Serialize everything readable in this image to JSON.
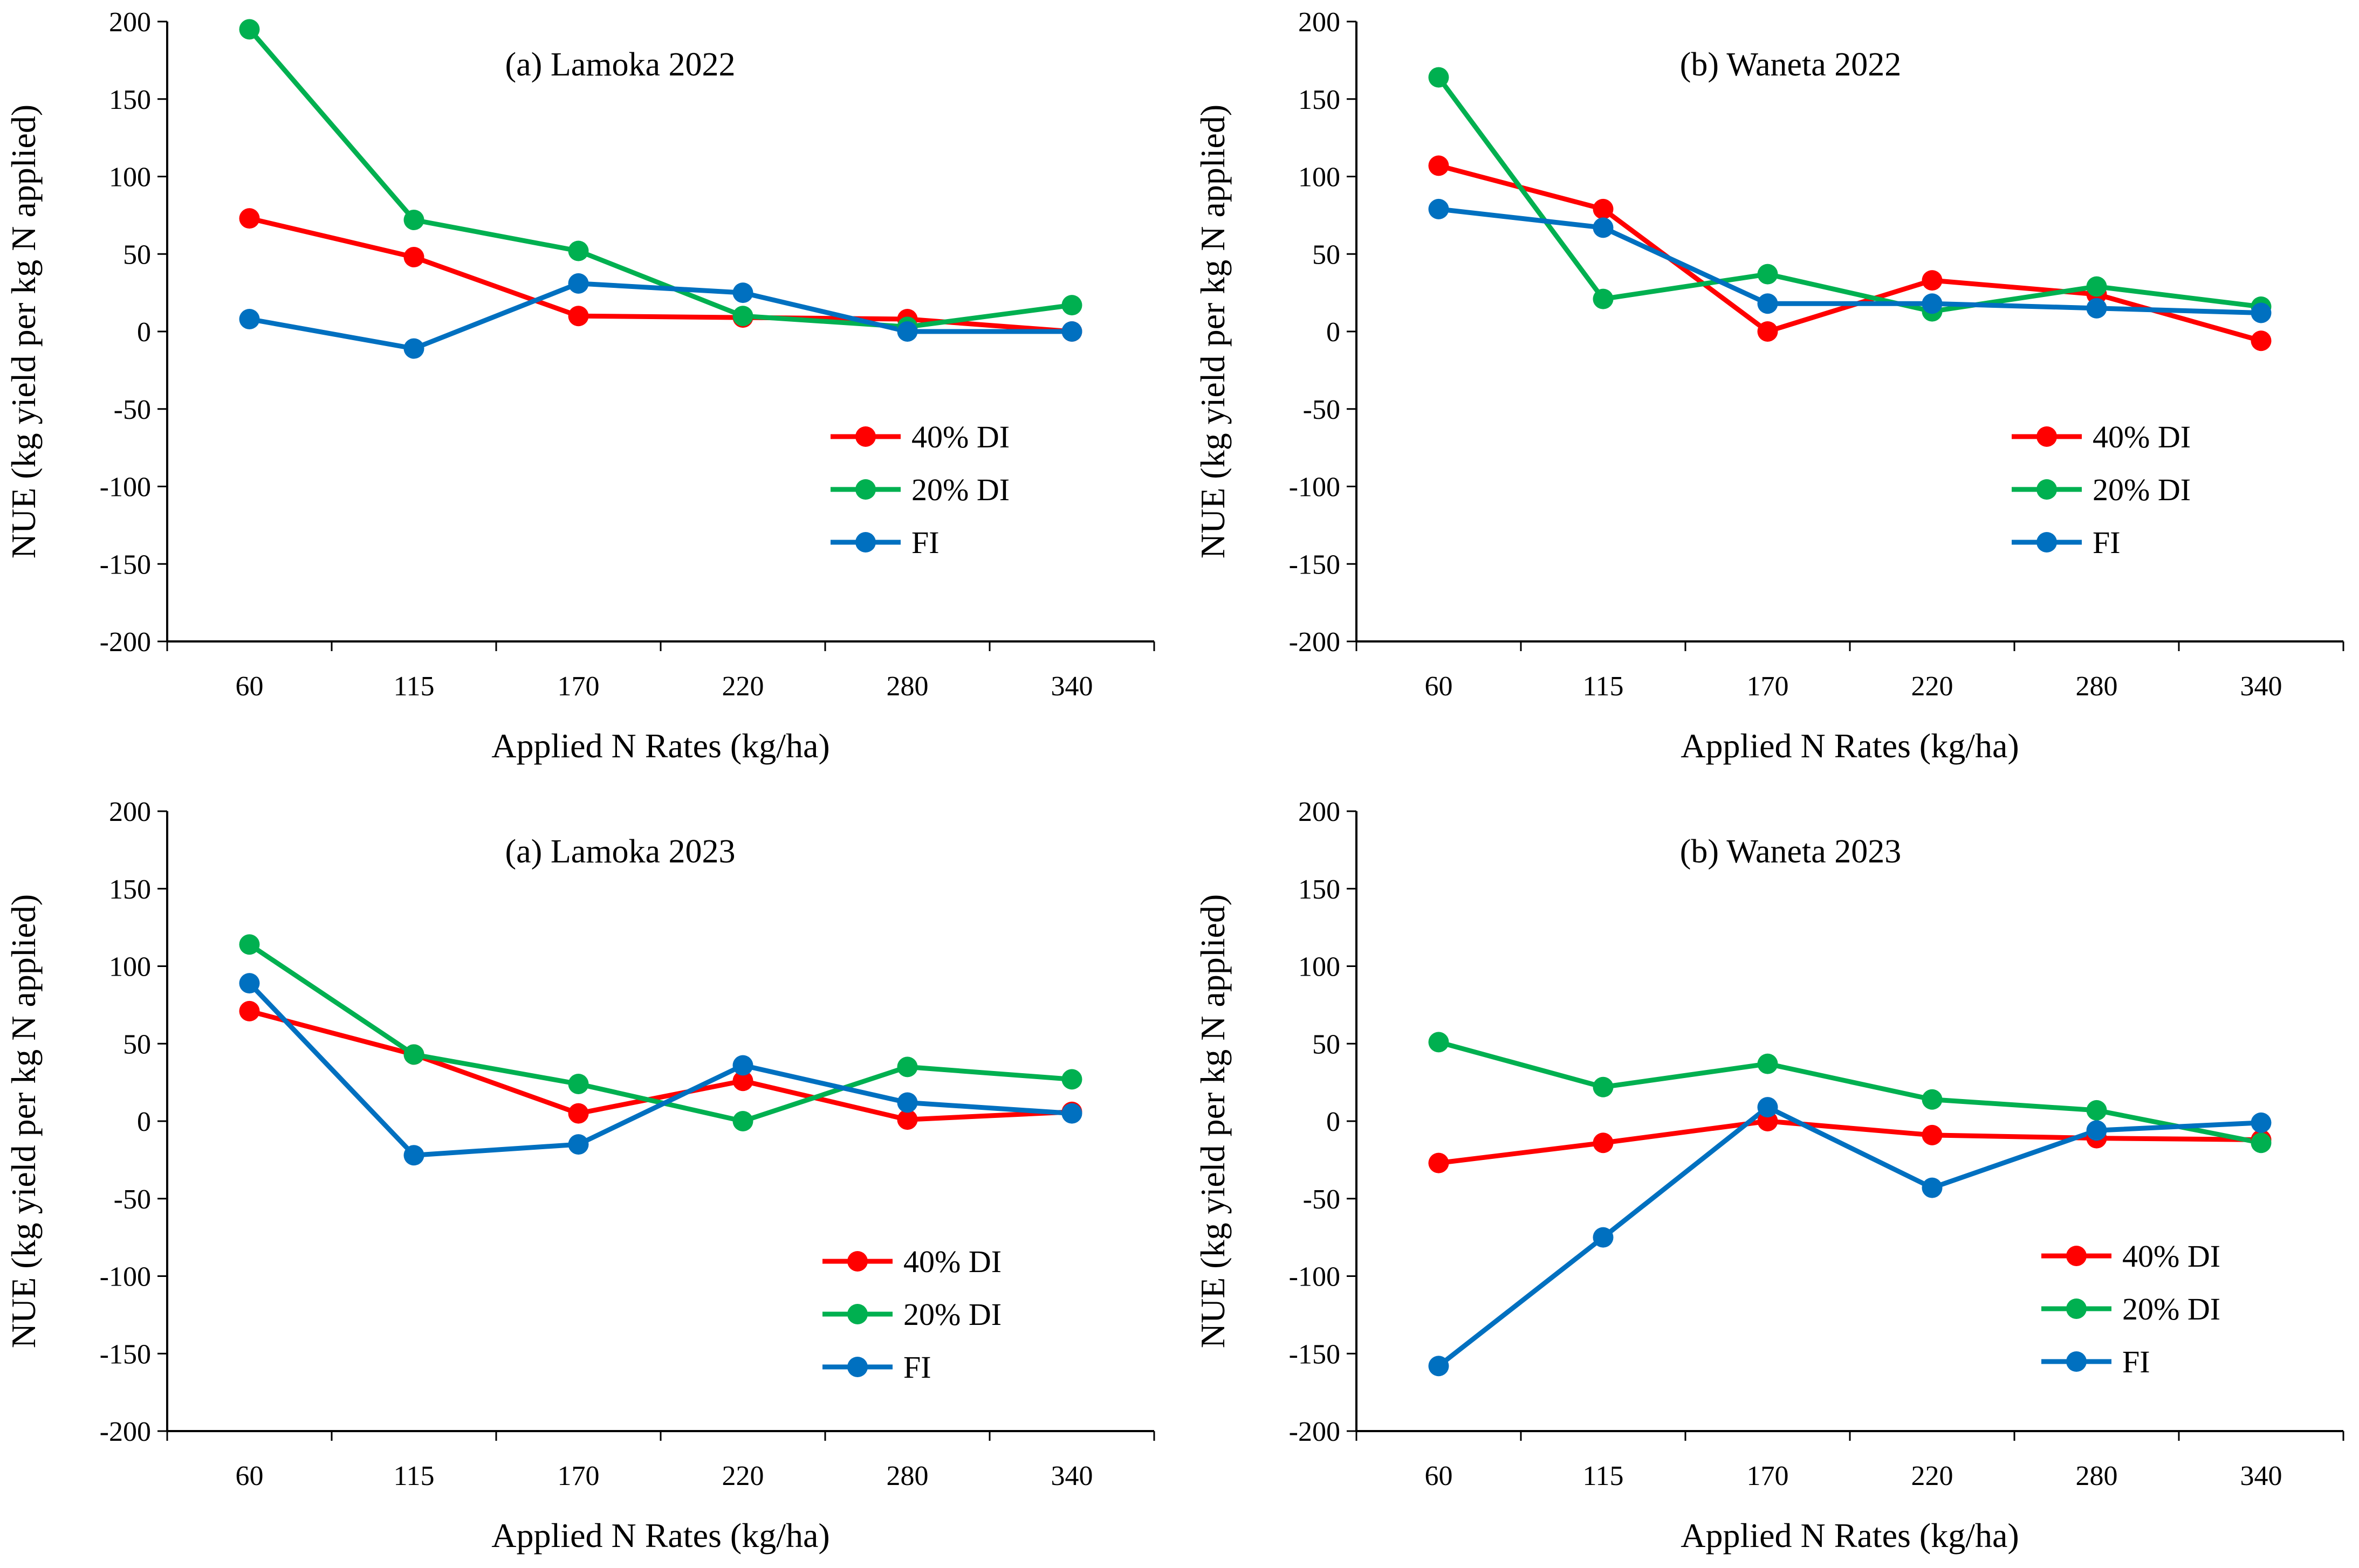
{
  "colors": {
    "s40": "#ff0000",
    "s20": "#00b050",
    "fi": "#0070c0",
    "axis": "#000000"
  },
  "chart_data": [
    {
      "type": "line",
      "title": "(a) Lamoka 2022",
      "xlabel": "Applied N Rates (kg/ha)",
      "ylabel": "NUE (kg yield per kg N applied)",
      "categories": [
        "60",
        "115",
        "170",
        "220",
        "280",
        "340"
      ],
      "ylim": [
        -200,
        200
      ],
      "yticks": [
        "200",
        "150",
        "100",
        "50",
        "0",
        "-50",
        "-100",
        "-150",
        "-200"
      ],
      "legend": "lower-right",
      "series": [
        {
          "name": "40% DI",
          "values": [
            73,
            48,
            10,
            9,
            8,
            0
          ]
        },
        {
          "name": "20% DI",
          "values": [
            195,
            72,
            52,
            10,
            3,
            17
          ]
        },
        {
          "name": "FI",
          "values": [
            8,
            -11,
            31,
            25,
            0,
            0
          ]
        }
      ]
    },
    {
      "type": "line",
      "title": "(b) Waneta 2022",
      "xlabel": "Applied N Rates (kg/ha)",
      "ylabel": "NUE (kg yield per kg N applied)",
      "categories": [
        "60",
        "115",
        "170",
        "220",
        "280",
        "340"
      ],
      "ylim": [
        -200,
        200
      ],
      "yticks": [
        "200",
        "150",
        "100",
        "50",
        "0",
        "-50",
        "-100",
        "-150",
        "-200"
      ],
      "legend": "lower-right",
      "series": [
        {
          "name": "40% DI",
          "values": [
            107,
            79,
            0,
            33,
            24,
            -6
          ]
        },
        {
          "name": "20% DI",
          "values": [
            164,
            21,
            37,
            13,
            29,
            16
          ]
        },
        {
          "name": "FI",
          "values": [
            79,
            67,
            18,
            18,
            15,
            12
          ]
        }
      ]
    },
    {
      "type": "line",
      "title": "(a) Lamoka 2023",
      "xlabel": "Applied N Rates (kg/ha)",
      "ylabel": "NUE (kg yield per kg N applied)",
      "categories": [
        "60",
        "115",
        "170",
        "220",
        "280",
        "340"
      ],
      "ylim": [
        -200,
        200
      ],
      "yticks": [
        "200",
        "150",
        "100",
        "50",
        "0",
        "-50",
        "-100",
        "-150",
        "-200"
      ],
      "legend": "lower-right",
      "series": [
        {
          "name": "40% DI",
          "values": [
            71,
            43,
            5,
            26,
            1,
            6
          ]
        },
        {
          "name": "20% DI",
          "values": [
            114,
            43,
            24,
            0,
            35,
            27
          ]
        },
        {
          "name": "FI",
          "values": [
            89,
            -22,
            -15,
            36,
            12,
            5
          ]
        }
      ]
    },
    {
      "type": "line",
      "title": "(b) Waneta 2023",
      "xlabel": "Applied N Rates (kg/ha)",
      "ylabel": "NUE (kg yield per kg N applied)",
      "categories": [
        "60",
        "115",
        "170",
        "220",
        "280",
        "340"
      ],
      "ylim": [
        -200,
        200
      ],
      "yticks": [
        "200",
        "150",
        "100",
        "50",
        "0",
        "-50",
        "-100",
        "-150",
        "-200"
      ],
      "legend": "lower-right",
      "series": [
        {
          "name": "40% DI",
          "values": [
            -27,
            -14,
            0,
            -9,
            -11,
            -12
          ]
        },
        {
          "name": "20% DI",
          "values": [
            51,
            22,
            37,
            14,
            7,
            -14
          ]
        },
        {
          "name": "FI",
          "values": [
            -158,
            -75,
            9,
            -43,
            -6,
            -1
          ]
        }
      ]
    }
  ]
}
